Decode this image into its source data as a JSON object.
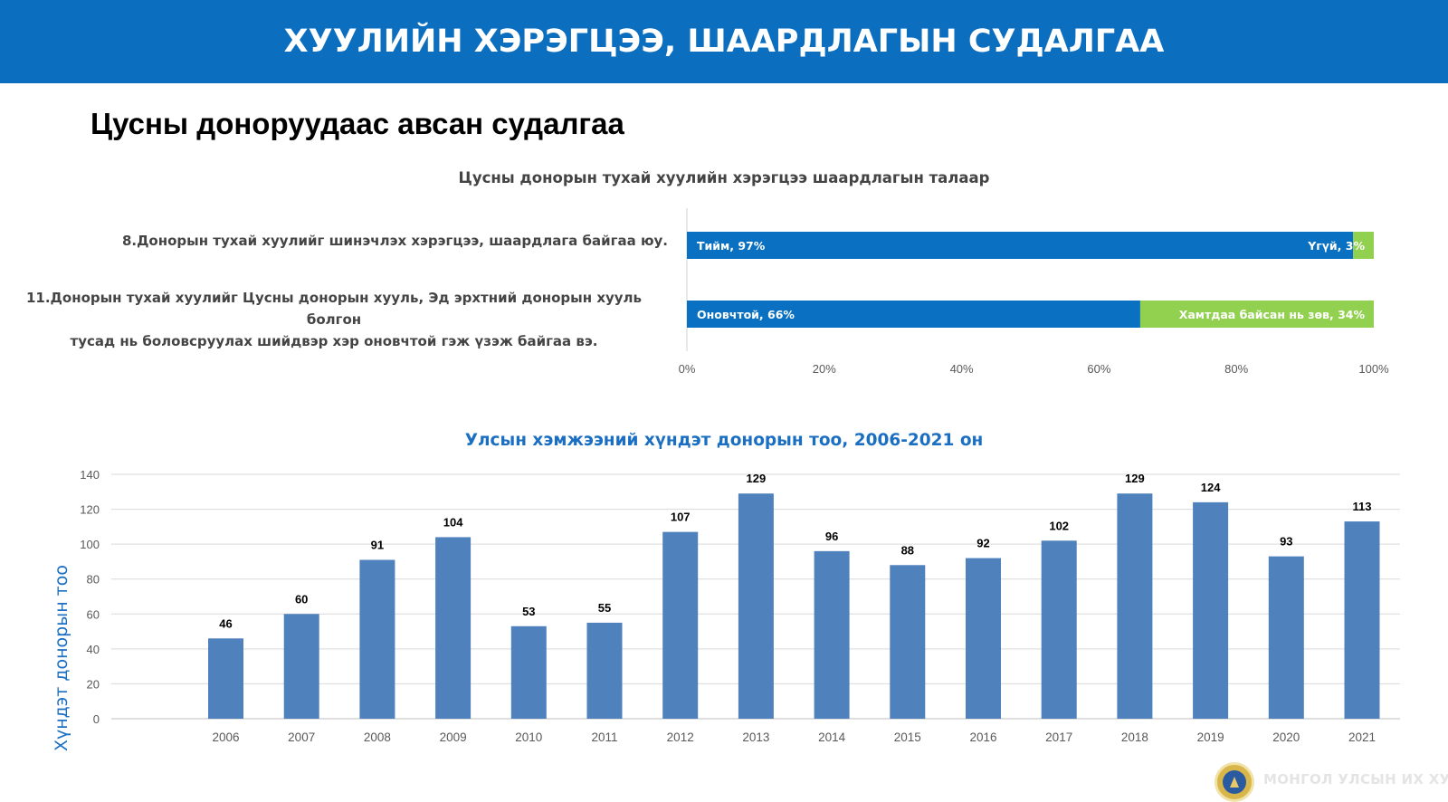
{
  "header": {
    "title": "ХУУЛИЙН ХЭРЭГЦЭЭ, ШААРДЛАГЫН СУДАЛГАА"
  },
  "subtitle": "Цусны доноруудаас авсан судалгаа",
  "footer": {
    "watermark_text": "МОНГОЛ УЛСЫН ИХ ХУРАЛ"
  },
  "colors": {
    "banner": "#0b6ebf",
    "bar_blue": "#0a70c2",
    "bar_green": "#92d050",
    "column_blue": "#4f81bd",
    "accent_title": "#1b6fc2"
  },
  "chart_data": [
    {
      "type": "bar",
      "orientation": "horizontal",
      "stacked": true,
      "title": "Цусны донорын тухай хуулийн хэрэгцээ шаардлагын талаар",
      "x_ticks": [
        "0%",
        "20%",
        "40%",
        "60%",
        "80%",
        "100%"
      ],
      "xlim": [
        0,
        100
      ],
      "categories": [
        [
          "8.Донорын тухай хуулийг шинэчлэх хэрэгцээ, шаардлага байгаа юу."
        ],
        [
          "11.Донорын тухай хуулийг Цусны донорын хууль, Эд эрхтний донорын хууль болгон",
          "тусад нь боловсруулах шийдвэр хэр оновчтой гэж үзэж байгаа вэ."
        ]
      ],
      "bars": [
        [
          {
            "value": 97,
            "label": "Тийм, 97%",
            "color": "#0a70c2"
          },
          {
            "value": 3,
            "label": "Үгүй, 3%",
            "color": "#92d050"
          }
        ],
        [
          {
            "value": 66,
            "label": "Оновчтой, 66%",
            "color": "#0a70c2"
          },
          {
            "value": 34,
            "label": "Хамтдаа байсан нь зөв, 34%",
            "color": "#92d050"
          }
        ]
      ]
    },
    {
      "type": "bar",
      "title": "Улсын хэмжээний хүндэт донорын тоо, 2006-2021 он",
      "ylabel": "Хүндэт донорын тоо",
      "ylim": [
        0,
        140
      ],
      "y_ticks": [
        0,
        20,
        40,
        60,
        80,
        100,
        120,
        140
      ],
      "grid": true,
      "categories": [
        "2006",
        "2007",
        "2008",
        "2009",
        "2010",
        "2011",
        "2012",
        "2013",
        "2014",
        "2015",
        "2016",
        "2017",
        "2018",
        "2019",
        "2020",
        "2021"
      ],
      "values": [
        46,
        60,
        91,
        104,
        53,
        55,
        107,
        129,
        96,
        88,
        92,
        102,
        129,
        124,
        93,
        113
      ]
    }
  ]
}
